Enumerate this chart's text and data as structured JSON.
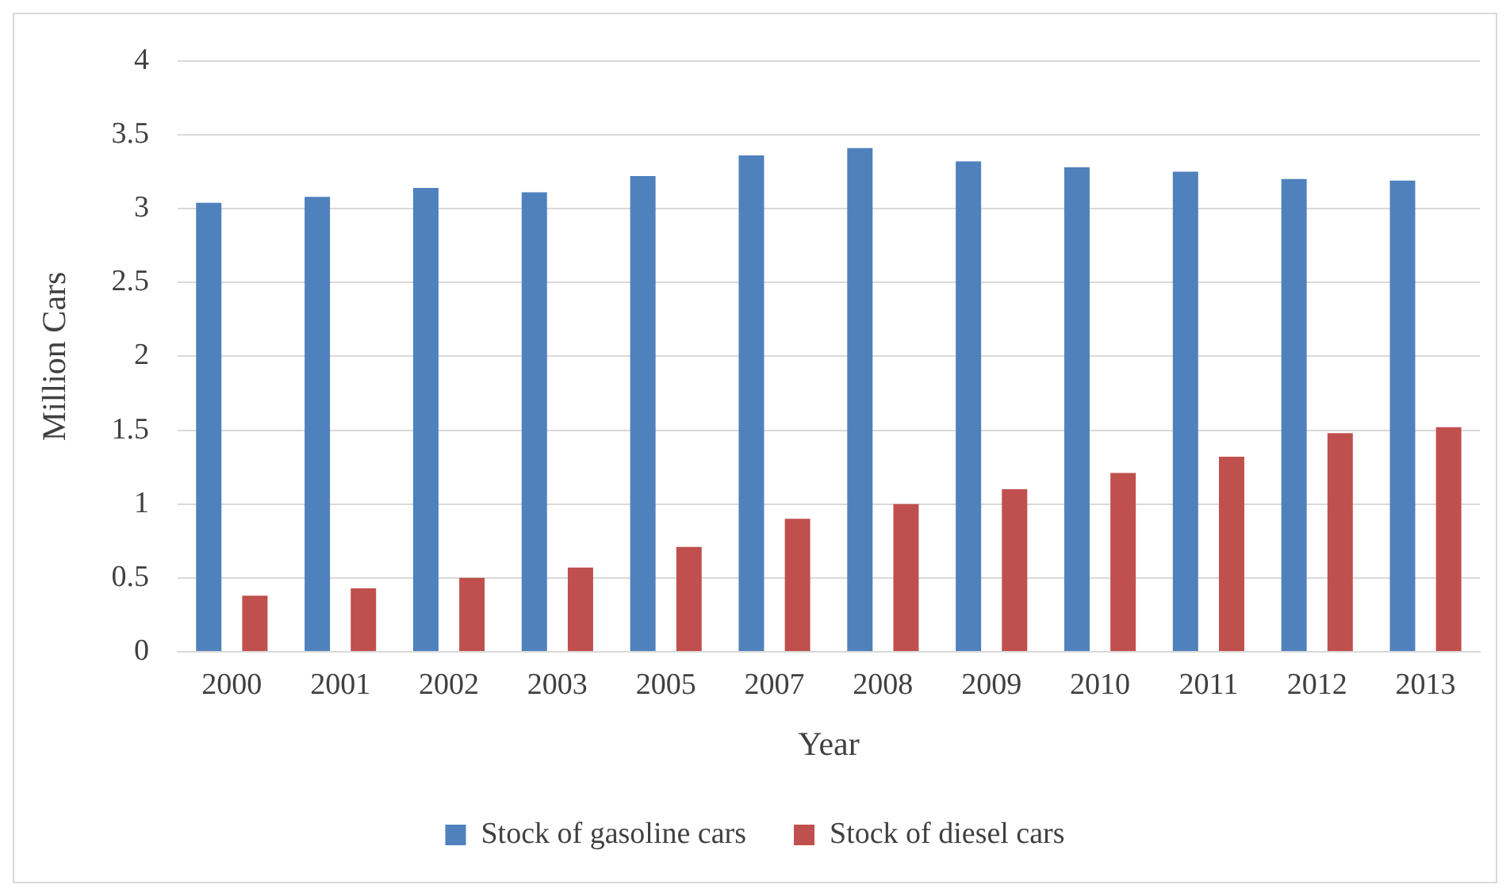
{
  "chart_data": {
    "type": "bar",
    "xlabel": "Year",
    "ylabel": "Million Cars",
    "categories": [
      "2000",
      "2001",
      "2002",
      "2003",
      "2005",
      "2007",
      "2008",
      "2009",
      "2010",
      "2011",
      "2012",
      "2013"
    ],
    "series": [
      {
        "name": "Stock of gasoline cars",
        "color": "#4f81bd",
        "values": [
          3.04,
          3.08,
          3.14,
          3.11,
          3.22,
          3.36,
          3.41,
          3.32,
          3.28,
          3.25,
          3.2,
          3.19
        ]
      },
      {
        "name": "Stock of diesel cars",
        "color": "#c0504d",
        "values": [
          0.38,
          0.43,
          0.5,
          0.57,
          0.71,
          0.9,
          1.0,
          1.1,
          1.21,
          1.32,
          1.48,
          1.52
        ]
      }
    ],
    "ylim": [
      0,
      4
    ],
    "yticks": [
      0,
      0.5,
      1,
      1.5,
      2,
      2.5,
      3,
      3.5,
      4
    ],
    "grid": "y",
    "legend": "bottom"
  }
}
